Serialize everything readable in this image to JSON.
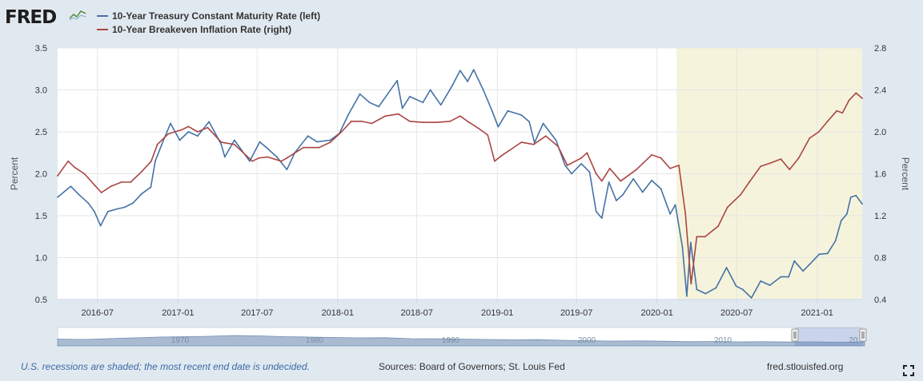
{
  "logo": {
    "text": "FRED",
    "icon": "chart-line-icon"
  },
  "legend": [
    {
      "label": "10-Year Treasury Constant Maturity Rate (left)",
      "color": "#4572a7"
    },
    {
      "label": "10-Year Breakeven Inflation Rate (right)",
      "color": "#aa4643"
    }
  ],
  "footer": {
    "note": "U.S. recessions are shaded; the most recent end date is undecided.",
    "sources": "Sources: Board of Governors; St. Louis Fed",
    "site": "fred.stlouisfed.org"
  },
  "colors": {
    "recession": "#f5f3db",
    "background": "#e1e9f0",
    "plot": "#ffffff"
  },
  "chart_data": {
    "type": "line",
    "x_range": [
      "2016-04-01",
      "2021-04-14"
    ],
    "ylabel_left": "Percent",
    "ylabel_right": "Percent",
    "ylim_left": [
      0.5,
      3.5
    ],
    "ylim_right": [
      0.4,
      2.8
    ],
    "yticks_left": [
      "0.5",
      "1.0",
      "1.5",
      "2.0",
      "2.5",
      "3.0",
      "3.5"
    ],
    "yticks_right": [
      "0.4",
      "0.8",
      "1.2",
      "1.6",
      "2.0",
      "2.4",
      "2.8"
    ],
    "xticks": [
      "2016-07",
      "2017-01",
      "2017-07",
      "2018-01",
      "2018-07",
      "2019-01",
      "2019-07",
      "2020-01",
      "2020-07",
      "2021-01"
    ],
    "recession": {
      "start": "2020-02-15",
      "end": "2021-04-14",
      "label": "U.S. recession (end undecided)"
    },
    "grid": true,
    "legend_position": "top-left",
    "series": [
      {
        "name": "10-Year Treasury Constant Maturity Rate (left)",
        "axis": "left",
        "color": "#4572a7",
        "points": [
          [
            "2016-04-01",
            1.72
          ],
          [
            "2016-05-01",
            1.85
          ],
          [
            "2016-05-20",
            1.75
          ],
          [
            "2016-06-10",
            1.65
          ],
          [
            "2016-06-24",
            1.55
          ],
          [
            "2016-07-08",
            1.38
          ],
          [
            "2016-07-25",
            1.55
          ],
          [
            "2016-08-15",
            1.58
          ],
          [
            "2016-09-01",
            1.6
          ],
          [
            "2016-09-20",
            1.65
          ],
          [
            "2016-10-10",
            1.76
          ],
          [
            "2016-10-31",
            1.84
          ],
          [
            "2016-11-10",
            2.15
          ],
          [
            "2016-11-25",
            2.35
          ],
          [
            "2016-12-15",
            2.6
          ],
          [
            "2017-01-05",
            2.4
          ],
          [
            "2017-01-25",
            2.5
          ],
          [
            "2017-02-15",
            2.45
          ],
          [
            "2017-03-13",
            2.62
          ],
          [
            "2017-04-10",
            2.35
          ],
          [
            "2017-04-18",
            2.2
          ],
          [
            "2017-05-10",
            2.4
          ],
          [
            "2017-06-14",
            2.15
          ],
          [
            "2017-07-07",
            2.38
          ],
          [
            "2017-07-25",
            2.3
          ],
          [
            "2017-08-15",
            2.2
          ],
          [
            "2017-09-07",
            2.05
          ],
          [
            "2017-09-25",
            2.25
          ],
          [
            "2017-10-25",
            2.45
          ],
          [
            "2017-11-15",
            2.38
          ],
          [
            "2017-12-15",
            2.4
          ],
          [
            "2018-01-05",
            2.48
          ],
          [
            "2018-01-25",
            2.7
          ],
          [
            "2018-02-21",
            2.95
          ],
          [
            "2018-03-15",
            2.85
          ],
          [
            "2018-04-05",
            2.8
          ],
          [
            "2018-05-17",
            3.11
          ],
          [
            "2018-05-29",
            2.78
          ],
          [
            "2018-06-15",
            2.92
          ],
          [
            "2018-07-15",
            2.85
          ],
          [
            "2018-08-01",
            3.0
          ],
          [
            "2018-08-25",
            2.82
          ],
          [
            "2018-09-20",
            3.05
          ],
          [
            "2018-10-08",
            3.23
          ],
          [
            "2018-10-25",
            3.1
          ],
          [
            "2018-11-08",
            3.24
          ],
          [
            "2018-11-30",
            3.0
          ],
          [
            "2018-12-20",
            2.75
          ],
          [
            "2019-01-03",
            2.56
          ],
          [
            "2019-01-25",
            2.75
          ],
          [
            "2019-02-25",
            2.7
          ],
          [
            "2019-03-15",
            2.62
          ],
          [
            "2019-03-27",
            2.37
          ],
          [
            "2019-04-16",
            2.6
          ],
          [
            "2019-05-15",
            2.4
          ],
          [
            "2019-06-05",
            2.1
          ],
          [
            "2019-06-20",
            2.0
          ],
          [
            "2019-07-12",
            2.12
          ],
          [
            "2019-07-31",
            2.02
          ],
          [
            "2019-08-15",
            1.55
          ],
          [
            "2019-08-28",
            1.47
          ],
          [
            "2019-09-13",
            1.9
          ],
          [
            "2019-09-30",
            1.68
          ],
          [
            "2019-10-15",
            1.75
          ],
          [
            "2019-11-08",
            1.94
          ],
          [
            "2019-11-29",
            1.78
          ],
          [
            "2019-12-20",
            1.92
          ],
          [
            "2020-01-10",
            1.82
          ],
          [
            "2020-01-31",
            1.52
          ],
          [
            "2020-02-12",
            1.63
          ],
          [
            "2020-02-28",
            1.13
          ],
          [
            "2020-03-09",
            0.54
          ],
          [
            "2020-03-18",
            1.18
          ],
          [
            "2020-04-01",
            0.62
          ],
          [
            "2020-04-21",
            0.57
          ],
          [
            "2020-05-15",
            0.64
          ],
          [
            "2020-06-08",
            0.88
          ],
          [
            "2020-06-30",
            0.66
          ],
          [
            "2020-07-15",
            0.62
          ],
          [
            "2020-08-04",
            0.52
          ],
          [
            "2020-08-25",
            0.72
          ],
          [
            "2020-09-15",
            0.67
          ],
          [
            "2020-10-10",
            0.77
          ],
          [
            "2020-10-28",
            0.77
          ],
          [
            "2020-11-10",
            0.96
          ],
          [
            "2020-11-30",
            0.84
          ],
          [
            "2020-12-15",
            0.92
          ],
          [
            "2021-01-06",
            1.04
          ],
          [
            "2021-01-25",
            1.05
          ],
          [
            "2021-02-12",
            1.2
          ],
          [
            "2021-02-25",
            1.44
          ],
          [
            "2021-03-10",
            1.52
          ],
          [
            "2021-03-19",
            1.72
          ],
          [
            "2021-03-31",
            1.74
          ],
          [
            "2021-04-14",
            1.64
          ]
        ]
      },
      {
        "name": "10-Year Breakeven Inflation Rate (right)",
        "axis": "right",
        "color": "#aa4643",
        "points": [
          [
            "2016-04-01",
            1.58
          ],
          [
            "2016-04-25",
            1.72
          ],
          [
            "2016-05-10",
            1.66
          ],
          [
            "2016-06-01",
            1.6
          ],
          [
            "2016-06-27",
            1.48
          ],
          [
            "2016-07-10",
            1.42
          ],
          [
            "2016-08-01",
            1.48
          ],
          [
            "2016-08-25",
            1.52
          ],
          [
            "2016-09-15",
            1.52
          ],
          [
            "2016-10-10",
            1.62
          ],
          [
            "2016-11-01",
            1.72
          ],
          [
            "2016-11-15",
            1.88
          ],
          [
            "2016-12-10",
            1.98
          ],
          [
            "2017-01-10",
            2.02
          ],
          [
            "2017-01-25",
            2.05
          ],
          [
            "2017-02-15",
            2.0
          ],
          [
            "2017-03-10",
            2.04
          ],
          [
            "2017-04-10",
            1.9
          ],
          [
            "2017-05-10",
            1.88
          ],
          [
            "2017-06-20",
            1.72
          ],
          [
            "2017-07-05",
            1.75
          ],
          [
            "2017-07-25",
            1.76
          ],
          [
            "2017-08-25",
            1.72
          ],
          [
            "2017-09-07",
            1.75
          ],
          [
            "2017-10-15",
            1.85
          ],
          [
            "2017-11-20",
            1.85
          ],
          [
            "2017-12-15",
            1.9
          ],
          [
            "2018-01-10",
            2.0
          ],
          [
            "2018-02-01",
            2.1
          ],
          [
            "2018-02-25",
            2.1
          ],
          [
            "2018-03-20",
            2.08
          ],
          [
            "2018-04-20",
            2.15
          ],
          [
            "2018-05-20",
            2.17
          ],
          [
            "2018-06-15",
            2.1
          ],
          [
            "2018-07-15",
            2.09
          ],
          [
            "2018-08-15",
            2.09
          ],
          [
            "2018-09-15",
            2.1
          ],
          [
            "2018-10-08",
            2.15
          ],
          [
            "2018-10-25",
            2.1
          ],
          [
            "2018-11-20",
            2.03
          ],
          [
            "2018-12-10",
            1.97
          ],
          [
            "2018-12-26",
            1.72
          ],
          [
            "2019-01-10",
            1.77
          ],
          [
            "2019-02-25",
            1.9
          ],
          [
            "2019-03-25",
            1.88
          ],
          [
            "2019-04-22",
            1.96
          ],
          [
            "2019-05-20",
            1.86
          ],
          [
            "2019-06-10",
            1.68
          ],
          [
            "2019-07-12",
            1.75
          ],
          [
            "2019-07-25",
            1.8
          ],
          [
            "2019-08-15",
            1.6
          ],
          [
            "2019-08-28",
            1.53
          ],
          [
            "2019-09-15",
            1.65
          ],
          [
            "2019-10-10",
            1.53
          ],
          [
            "2019-11-15",
            1.64
          ],
          [
            "2019-12-20",
            1.78
          ],
          [
            "2020-01-10",
            1.75
          ],
          [
            "2020-01-31",
            1.65
          ],
          [
            "2020-02-20",
            1.68
          ],
          [
            "2020-03-06",
            1.22
          ],
          [
            "2020-03-19",
            0.55
          ],
          [
            "2020-04-01",
            1.0
          ],
          [
            "2020-04-20",
            1.0
          ],
          [
            "2020-05-20",
            1.1
          ],
          [
            "2020-06-10",
            1.28
          ],
          [
            "2020-07-10",
            1.4
          ],
          [
            "2020-07-30",
            1.52
          ],
          [
            "2020-08-25",
            1.67
          ],
          [
            "2020-09-15",
            1.7
          ],
          [
            "2020-10-10",
            1.74
          ],
          [
            "2020-10-30",
            1.64
          ],
          [
            "2020-11-20",
            1.75
          ],
          [
            "2020-12-15",
            1.94
          ],
          [
            "2021-01-05",
            2.0
          ],
          [
            "2021-01-25",
            2.1
          ],
          [
            "2021-02-15",
            2.2
          ],
          [
            "2021-02-28",
            2.18
          ],
          [
            "2021-03-15",
            2.3
          ],
          [
            "2021-03-31",
            2.37
          ],
          [
            "2021-04-14",
            2.32
          ]
        ]
      }
    ]
  },
  "navigator": {
    "labels": [
      "1970",
      "1980",
      "1990",
      "2000",
      "2010",
      "20"
    ],
    "range_start": "2016-04-01",
    "range_end": "2021-04-14"
  }
}
